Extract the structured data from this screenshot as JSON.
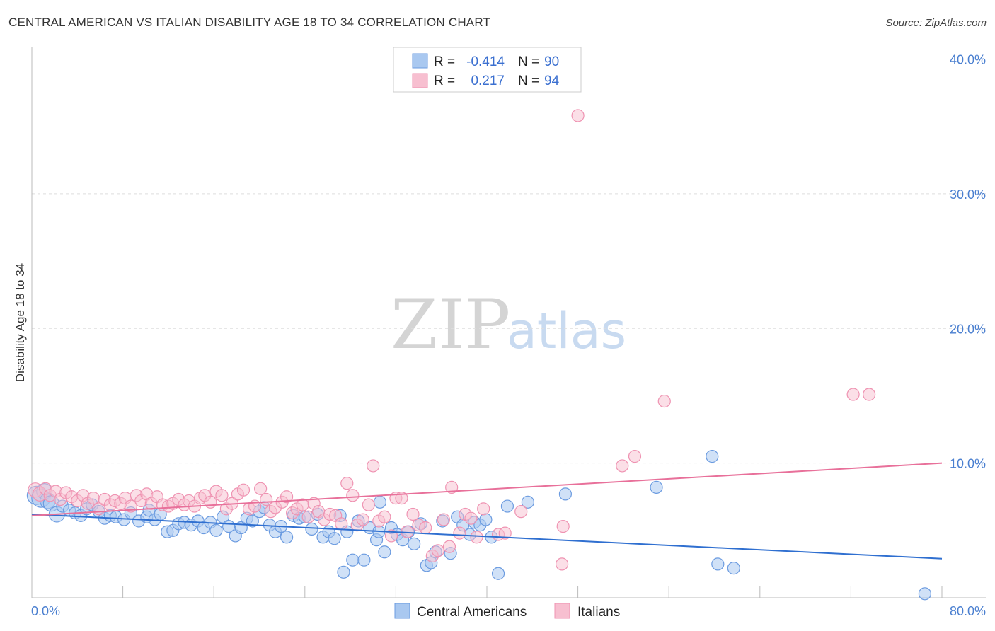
{
  "header": {
    "title": "CENTRAL AMERICAN VS ITALIAN DISABILITY AGE 18 TO 34 CORRELATION CHART",
    "source": "Source: ZipAtlas.com"
  },
  "watermark": {
    "zip": "ZIP",
    "atlas": "atlas"
  },
  "legend": {
    "rows": [
      {
        "r_label": "R =",
        "r_value": "-0.414",
        "n_label": "N =",
        "n_value": "90"
      },
      {
        "r_label": "R =",
        "r_value": "0.217",
        "n_label": "N =",
        "n_value": "94"
      }
    ]
  },
  "bottom_legend": {
    "series1": "Central Americans",
    "series2": "Italians"
  },
  "colors": {
    "blue_fill": "#a9c8f0",
    "blue_stroke": "#6b9be0",
    "blue_line": "#2f6fd0",
    "pink_fill": "#f7bfd0",
    "pink_stroke": "#ef93b2",
    "pink_line": "#e8709a",
    "grid": "#dddddd",
    "tick_text": "#4a7fd0"
  },
  "chart_data": {
    "type": "scatter",
    "title": "CENTRAL AMERICAN VS ITALIAN DISABILITY AGE 18 TO 34 CORRELATION CHART",
    "xlabel": "",
    "ylabel": "Disability Age 18 to 34",
    "xlim": [
      0,
      80
    ],
    "ylim": [
      0,
      40
    ],
    "x_tick_labels": [
      {
        "value": 0,
        "label": "0.0%"
      },
      {
        "value": 80,
        "label": "80.0%"
      }
    ],
    "y_tick_labels": [
      {
        "value": 10,
        "label": "10.0%"
      },
      {
        "value": 20,
        "label": "20.0%"
      },
      {
        "value": 30,
        "label": "30.0%"
      },
      {
        "value": 40,
        "label": "40.0%"
      }
    ],
    "series": [
      {
        "name": "Central Americans",
        "color": "#a9c8f0",
        "r": -0.414,
        "n": 90,
        "trend": {
          "x": [
            0,
            80
          ],
          "y": [
            6.2,
            2.9
          ]
        },
        "points": [
          [
            0.4,
            7.6
          ],
          [
            0.8,
            7.4
          ],
          [
            1.1,
            7.9
          ],
          [
            1.4,
            7.2
          ],
          [
            1.7,
            7.0
          ],
          [
            2.2,
            6.2
          ],
          [
            2.7,
            6.8
          ],
          [
            3.3,
            6.5
          ],
          [
            3.8,
            6.3
          ],
          [
            4.3,
            6.1
          ],
          [
            4.8,
            6.6
          ],
          [
            5.3,
            6.9
          ],
          [
            5.9,
            6.4
          ],
          [
            6.4,
            5.9
          ],
          [
            6.9,
            6.1
          ],
          [
            7.4,
            6.0
          ],
          [
            8.1,
            5.8
          ],
          [
            8.7,
            6.3
          ],
          [
            9.4,
            5.7
          ],
          [
            10.1,
            6.0
          ],
          [
            10.3,
            6.5
          ],
          [
            10.8,
            5.8
          ],
          [
            11.3,
            6.2
          ],
          [
            11.9,
            4.9
          ],
          [
            12.4,
            5.0
          ],
          [
            12.9,
            5.5
          ],
          [
            13.4,
            5.6
          ],
          [
            14.0,
            5.4
          ],
          [
            14.6,
            5.7
          ],
          [
            15.1,
            5.2
          ],
          [
            15.7,
            5.6
          ],
          [
            16.2,
            5.0
          ],
          [
            16.8,
            6.0
          ],
          [
            17.3,
            5.3
          ],
          [
            17.9,
            4.6
          ],
          [
            18.4,
            5.2
          ],
          [
            18.9,
            5.9
          ],
          [
            19.4,
            5.7
          ],
          [
            20.0,
            6.4
          ],
          [
            20.4,
            6.7
          ],
          [
            20.9,
            5.4
          ],
          [
            21.4,
            4.9
          ],
          [
            21.9,
            5.3
          ],
          [
            22.4,
            4.5
          ],
          [
            23.0,
            6.1
          ],
          [
            23.5,
            5.9
          ],
          [
            24.0,
            6.0
          ],
          [
            24.6,
            5.1
          ],
          [
            25.1,
            6.2
          ],
          [
            25.6,
            4.5
          ],
          [
            26.1,
            4.9
          ],
          [
            26.6,
            4.4
          ],
          [
            27.1,
            6.1
          ],
          [
            27.4,
            1.9
          ],
          [
            27.7,
            4.9
          ],
          [
            28.2,
            2.8
          ],
          [
            28.7,
            5.7
          ],
          [
            29.2,
            2.8
          ],
          [
            29.7,
            5.2
          ],
          [
            30.3,
            4.3
          ],
          [
            30.6,
            7.1
          ],
          [
            31.0,
            3.4
          ],
          [
            31.6,
            5.2
          ],
          [
            32.1,
            4.7
          ],
          [
            32.6,
            4.3
          ],
          [
            33.1,
            4.9
          ],
          [
            33.6,
            4.0
          ],
          [
            34.2,
            5.5
          ],
          [
            34.7,
            2.4
          ],
          [
            35.1,
            2.6
          ],
          [
            35.5,
            3.4
          ],
          [
            36.1,
            5.7
          ],
          [
            36.8,
            3.3
          ],
          [
            37.4,
            6.0
          ],
          [
            37.9,
            5.4
          ],
          [
            38.5,
            4.7
          ],
          [
            38.9,
            5.6
          ],
          [
            39.4,
            5.4
          ],
          [
            39.9,
            5.8
          ],
          [
            40.4,
            4.5
          ],
          [
            41.8,
            6.8
          ],
          [
            43.6,
            7.1
          ],
          [
            46.9,
            7.7
          ],
          [
            54.9,
            8.2
          ],
          [
            59.8,
            10.5
          ],
          [
            60.3,
            2.5
          ],
          [
            61.7,
            2.2
          ],
          [
            78.5,
            0.3
          ],
          [
            41.0,
            1.8
          ],
          [
            30.5,
            4.9
          ]
        ]
      },
      {
        "name": "Italians",
        "color": "#f7bfd0",
        "r": 0.217,
        "n": 94,
        "trend": {
          "x": [
            0,
            80
          ],
          "y": [
            6.1,
            10.0
          ]
        },
        "points": [
          [
            0.3,
            8.0
          ],
          [
            0.7,
            7.7
          ],
          [
            1.2,
            8.1
          ],
          [
            1.6,
            7.6
          ],
          [
            2.1,
            7.9
          ],
          [
            2.5,
            7.3
          ],
          [
            3.0,
            7.8
          ],
          [
            3.5,
            7.5
          ],
          [
            4.0,
            7.2
          ],
          [
            4.5,
            7.6
          ],
          [
            4.9,
            7.0
          ],
          [
            5.4,
            7.4
          ],
          [
            5.9,
            6.6
          ],
          [
            6.4,
            7.3
          ],
          [
            6.9,
            6.9
          ],
          [
            7.3,
            7.2
          ],
          [
            7.8,
            7.0
          ],
          [
            8.2,
            7.4
          ],
          [
            8.7,
            6.8
          ],
          [
            9.2,
            7.6
          ],
          [
            9.6,
            7.2
          ],
          [
            10.1,
            7.7
          ],
          [
            10.5,
            7.0
          ],
          [
            11.0,
            7.5
          ],
          [
            11.5,
            6.9
          ],
          [
            12.0,
            6.8
          ],
          [
            12.4,
            7.0
          ],
          [
            12.9,
            7.3
          ],
          [
            13.4,
            6.9
          ],
          [
            13.8,
            7.2
          ],
          [
            14.3,
            6.8
          ],
          [
            14.8,
            7.4
          ],
          [
            15.2,
            7.6
          ],
          [
            15.7,
            7.1
          ],
          [
            16.2,
            7.9
          ],
          [
            16.7,
            7.6
          ],
          [
            17.1,
            6.6
          ],
          [
            17.6,
            7.0
          ],
          [
            18.1,
            7.7
          ],
          [
            18.6,
            8.0
          ],
          [
            19.1,
            6.6
          ],
          [
            19.6,
            6.8
          ],
          [
            20.1,
            8.1
          ],
          [
            20.6,
            7.3
          ],
          [
            21.0,
            6.4
          ],
          [
            21.4,
            6.7
          ],
          [
            22.0,
            7.1
          ],
          [
            22.4,
            7.5
          ],
          [
            22.9,
            6.3
          ],
          [
            23.3,
            6.6
          ],
          [
            23.8,
            6.9
          ],
          [
            24.3,
            6.0
          ],
          [
            24.8,
            7.0
          ],
          [
            25.2,
            6.4
          ],
          [
            25.7,
            5.8
          ],
          [
            26.2,
            6.2
          ],
          [
            26.7,
            6.1
          ],
          [
            27.2,
            5.5
          ],
          [
            27.7,
            8.5
          ],
          [
            28.2,
            7.6
          ],
          [
            28.6,
            5.4
          ],
          [
            29.1,
            5.8
          ],
          [
            29.6,
            6.9
          ],
          [
            30.0,
            9.8
          ],
          [
            30.5,
            5.7
          ],
          [
            31.0,
            6.0
          ],
          [
            31.6,
            4.6
          ],
          [
            32.0,
            7.4
          ],
          [
            32.5,
            7.4
          ],
          [
            33.0,
            4.9
          ],
          [
            33.5,
            6.2
          ],
          [
            34.0,
            5.4
          ],
          [
            34.6,
            5.2
          ],
          [
            35.2,
            3.1
          ],
          [
            35.7,
            3.5
          ],
          [
            36.2,
            5.8
          ],
          [
            36.7,
            3.8
          ],
          [
            36.9,
            8.2
          ],
          [
            37.6,
            4.8
          ],
          [
            38.1,
            6.2
          ],
          [
            38.6,
            5.9
          ],
          [
            39.1,
            4.5
          ],
          [
            39.7,
            6.6
          ],
          [
            41.0,
            4.7
          ],
          [
            41.6,
            4.8
          ],
          [
            43.0,
            6.4
          ],
          [
            46.7,
            5.3
          ],
          [
            46.6,
            2.5
          ],
          [
            51.9,
            9.8
          ],
          [
            53.0,
            10.5
          ],
          [
            55.6,
            14.6
          ],
          [
            72.2,
            15.1
          ],
          [
            73.6,
            15.1
          ],
          [
            48.0,
            35.8
          ]
        ]
      }
    ]
  }
}
